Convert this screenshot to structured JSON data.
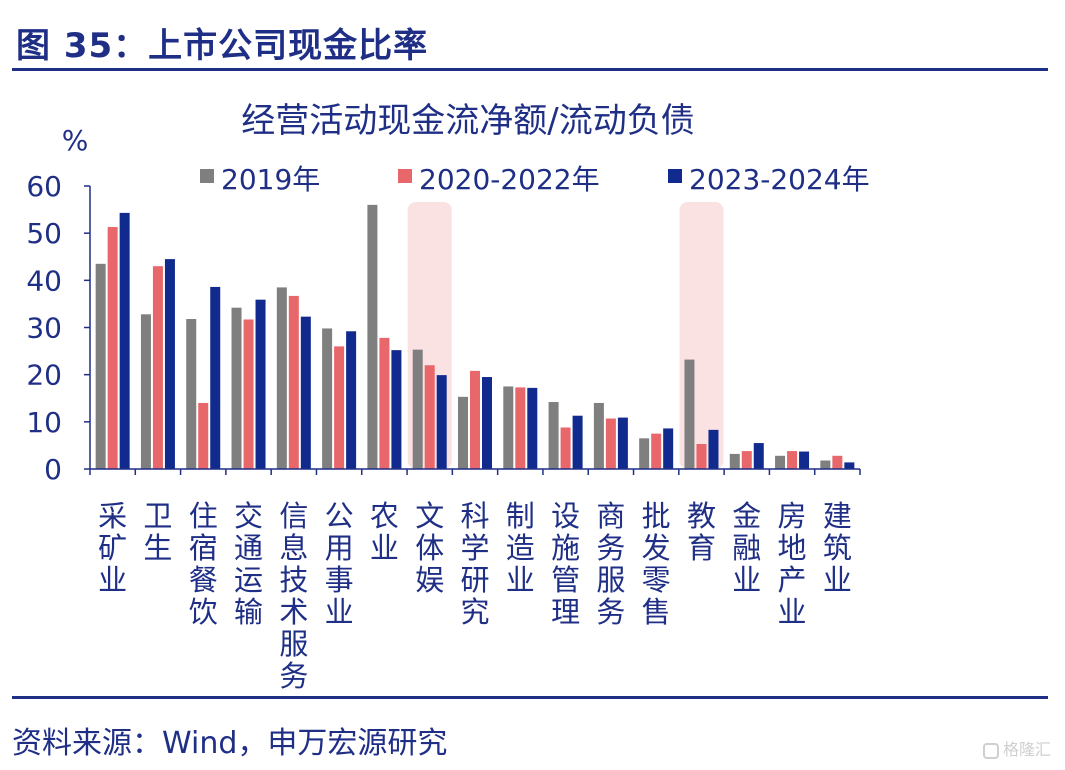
{
  "figure": {
    "title": "图 35：上市公司现金比率",
    "source": "资料来源：Wind，申万宏源研究",
    "watermark": "格隆汇"
  },
  "colors": {
    "brand": "#1f2f86",
    "series": [
      "#7f7f7f",
      "#e8676b",
      "#102a8e"
    ],
    "highlight": "#fbe2e2"
  },
  "chart_data": {
    "type": "bar",
    "title": "经营活动现金流净额/流动负债",
    "ylabel": "%",
    "xlabel": "",
    "ylim": [
      0,
      60
    ],
    "yticks": [
      0,
      10,
      20,
      30,
      40,
      50,
      60
    ],
    "legend_position": "top",
    "grid": false,
    "categories": [
      "采矿业",
      "卫生",
      "住宿餐饮",
      "交通运输",
      "信息技术服务",
      "公用事业",
      "农业",
      "文体娱",
      "科学研究",
      "制造业",
      "设施管理",
      "商务服务",
      "批发零售",
      "教育",
      "金融业",
      "房地产业",
      "建筑业"
    ],
    "series": [
      {
        "name": "2019年",
        "values": [
          43.5,
          32.8,
          31.8,
          34.2,
          38.5,
          29.8,
          56.0,
          25.3,
          15.3,
          17.5,
          14.2,
          14.0,
          6.5,
          23.2,
          3.2,
          2.8,
          1.8
        ]
      },
      {
        "name": "2020-2022年",
        "values": [
          51.3,
          43.0,
          14.0,
          31.7,
          36.7,
          26.0,
          27.8,
          22.0,
          20.8,
          17.3,
          8.8,
          10.7,
          7.5,
          5.3,
          3.8,
          3.8,
          2.8
        ]
      },
      {
        "name": "2023-2024年",
        "values": [
          54.3,
          44.5,
          38.6,
          35.9,
          32.3,
          29.2,
          25.2,
          19.9,
          19.5,
          17.2,
          11.3,
          10.9,
          8.6,
          8.3,
          5.5,
          3.7,
          1.4
        ]
      }
    ],
    "highlighted_categories": [
      "文体娱",
      "教育"
    ]
  }
}
